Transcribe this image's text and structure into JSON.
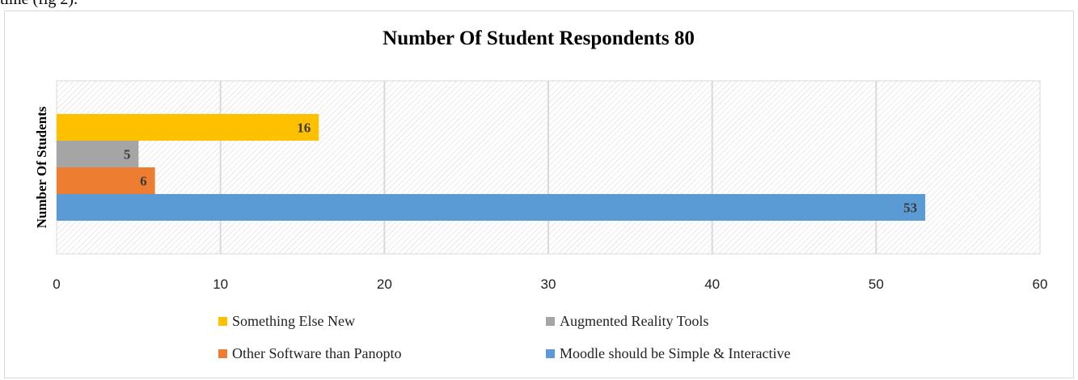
{
  "caption_fragment": "time (fig 2).",
  "chart_data": {
    "type": "bar",
    "orientation": "horizontal",
    "title": "Number Of Student Respondents 80",
    "xlabel": "",
    "ylabel": "Number Of Students",
    "xlim": [
      0,
      60
    ],
    "xticks": [
      0,
      10,
      20,
      30,
      40,
      50,
      60
    ],
    "grid": true,
    "legend_position": "bottom",
    "series": [
      {
        "name": "Something Else New",
        "value": 16,
        "color": "#FFC000"
      },
      {
        "name": "Augmented Reality Tools",
        "value": 5,
        "color": "#A5A5A5"
      },
      {
        "name": "Other Software than Panopto",
        "value": 6,
        "color": "#ED7D31"
      },
      {
        "name": "Moodle should be Simple & Interactive",
        "value": 53,
        "color": "#5B9BD5"
      }
    ],
    "legend_order": [
      "Something Else New",
      "Augmented Reality Tools",
      "Other Software than Panopto",
      "Moodle should be Simple & Interactive"
    ]
  }
}
